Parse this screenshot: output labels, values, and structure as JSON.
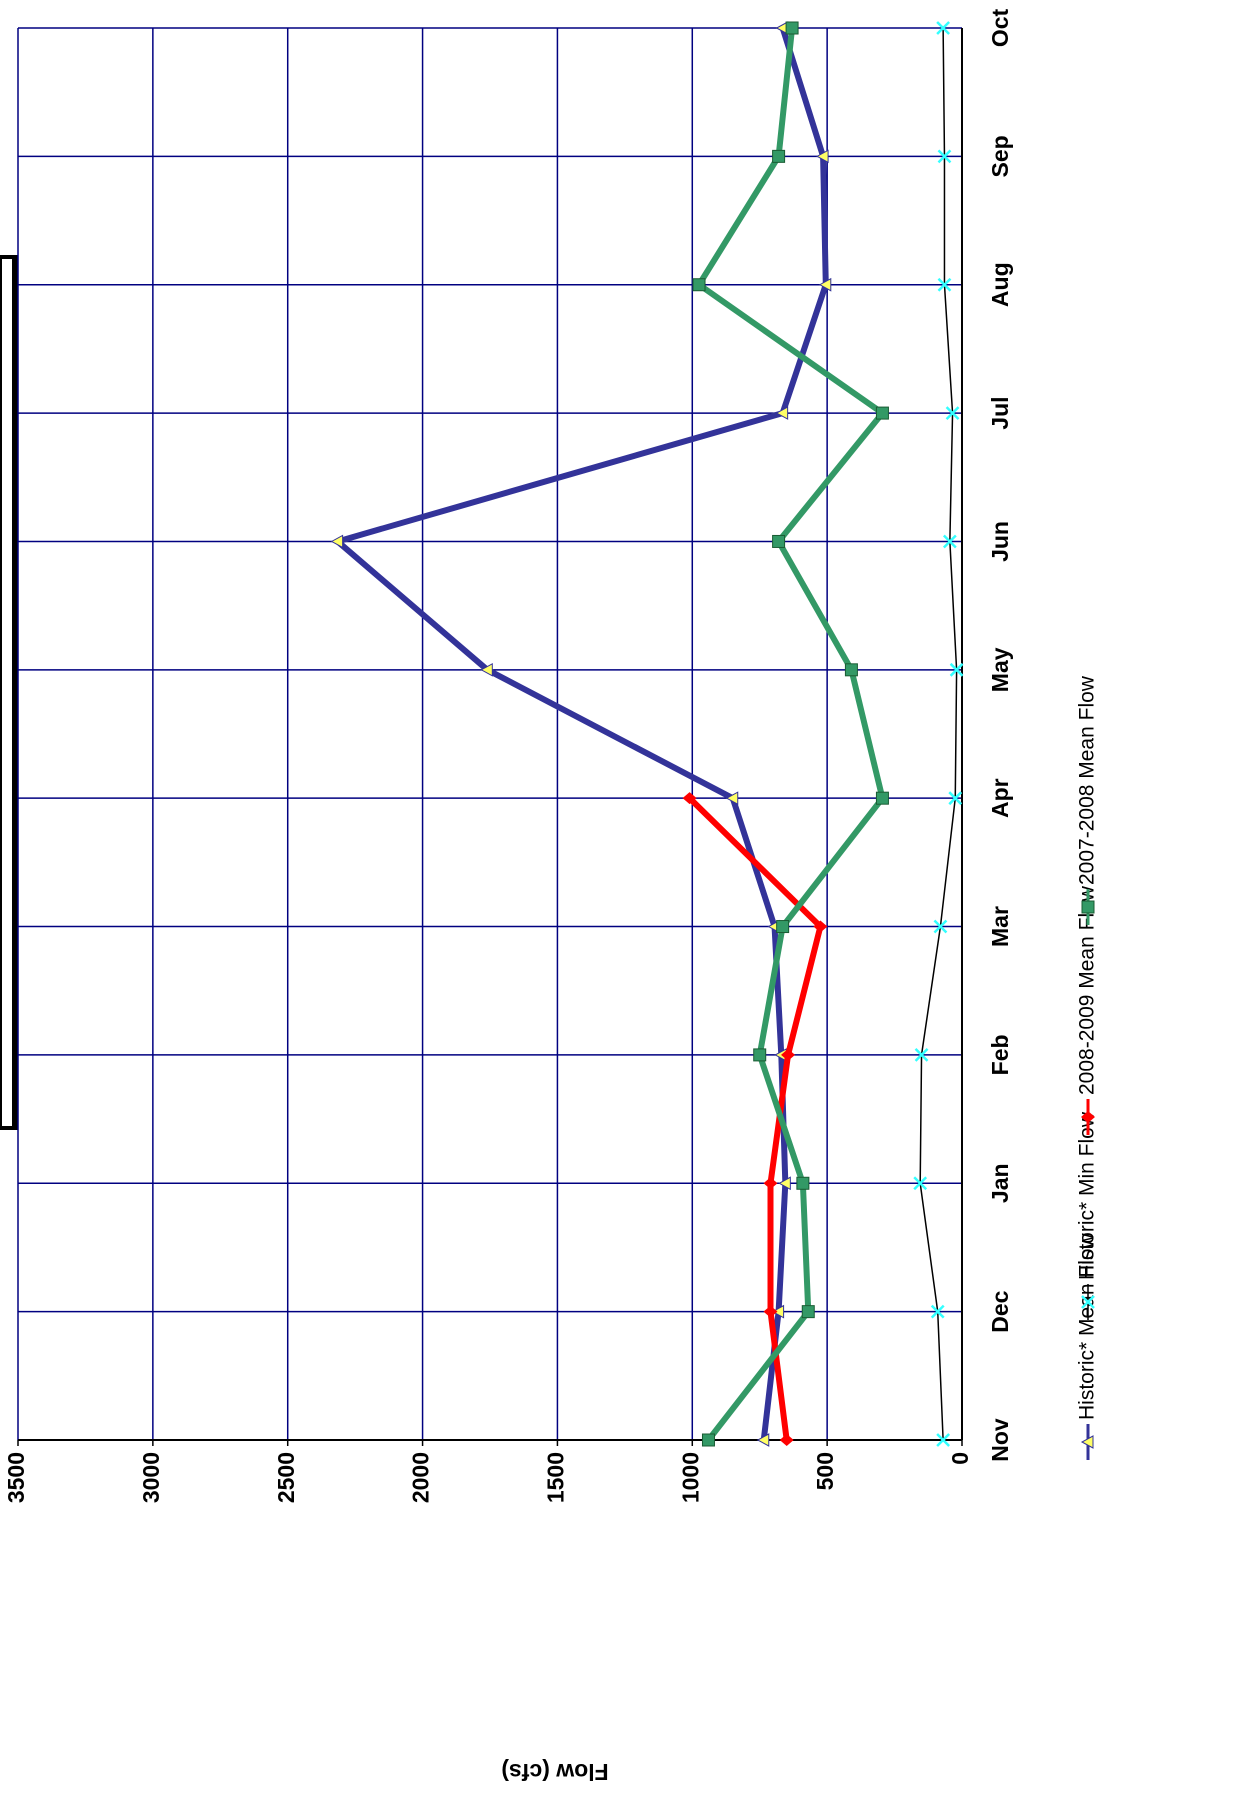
{
  "chart_data": {
    "type": "line",
    "y_label": "Flow (cfs)",
    "categories": [
      "Nov",
      "Dec",
      "Jan",
      "Feb",
      "Mar",
      "Apr",
      "May",
      "Jun",
      "Jul",
      "Aug",
      "Sep",
      "Oct"
    ],
    "ylim": [
      0,
      3500
    ],
    "yticks": [
      0,
      500,
      1000,
      1500,
      2000,
      2500,
      3000,
      3500
    ],
    "grid": true,
    "legend": "bottom",
    "series": [
      {
        "name": "Historic* Mean Flow",
        "color": "#333399",
        "marker": "triangle",
        "marker_color": "#ffff66",
        "values": [
          735,
          680,
          655,
          670,
          695,
          850,
          1760,
          2315,
          665,
          505,
          515,
          665
        ]
      },
      {
        "name": "Historic* Min Flow",
        "color": "#000000",
        "marker": "x",
        "marker_color": "#33ffff",
        "values": [
          70,
          90,
          155,
          150,
          80,
          25,
          20,
          45,
          35,
          65,
          65,
          70
        ]
      },
      {
        "name": "2008-2009  Mean Flow",
        "color": "#ff0000",
        "marker": "diamond",
        "marker_color": "#ff0000",
        "values": [
          650,
          710,
          710,
          645,
          525,
          1010,
          null,
          null,
          null,
          null,
          null,
          null
        ]
      },
      {
        "name": "2007-2008  Mean Flow",
        "color": "#339966",
        "marker": "square",
        "marker_color": "#339966",
        "values": [
          940,
          570,
          590,
          750,
          665,
          295,
          410,
          680,
          295,
          975,
          680,
          630
        ]
      }
    ]
  }
}
